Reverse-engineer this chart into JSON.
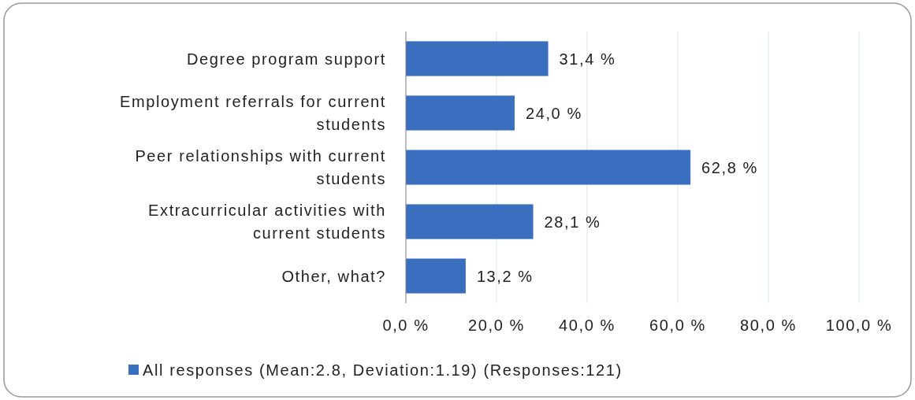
{
  "chart_data": {
    "type": "bar",
    "orientation": "horizontal",
    "categories": [
      "Degree program support",
      "Employment referrals for current students",
      "Peer relationships with current students",
      "Extracurricular activities with current students",
      "Other, what?"
    ],
    "series": [
      {
        "name": "All responses (Mean:2.8, Deviation:1.19) (Responses:121)",
        "color": "#3a6fbf",
        "values": [
          31.4,
          24.0,
          62.8,
          28.1,
          13.2
        ],
        "value_labels": [
          "31,4 %",
          "24,0 %",
          "62,8 %",
          "28,1 %",
          "13,2 %"
        ]
      }
    ],
    "xlim": [
      0,
      100
    ],
    "xticks": [
      {
        "value": 0,
        "label": "0,0 %"
      },
      {
        "value": 20,
        "label": "20,0 %"
      },
      {
        "value": 40,
        "label": "40,0 %"
      },
      {
        "value": 60,
        "label": "60,0 %"
      },
      {
        "value": 80,
        "label": "80,0 %"
      },
      {
        "value": 100,
        "label": "100,0 %"
      }
    ],
    "grid": "x",
    "legend": "bottom"
  }
}
